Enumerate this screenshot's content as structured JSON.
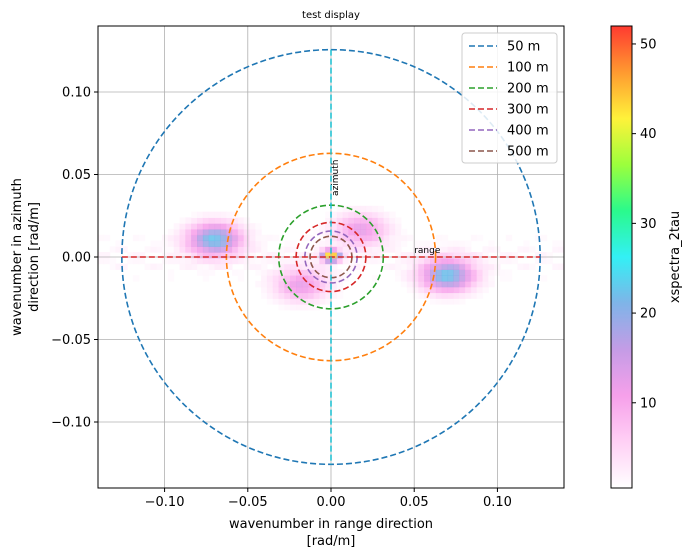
{
  "chart_data": {
    "type": "heatmap",
    "title": "test display",
    "xlabel": "wavenumber in range direction",
    "xlabel_unit": "[rad/m]",
    "ylabel": "wavenumber in azimuth",
    "ylabel_unit": "direction [rad/m]",
    "xlim": [
      -0.14,
      0.14
    ],
    "ylim": [
      -0.14,
      0.14
    ],
    "xticks": [
      -0.1,
      -0.05,
      0.0,
      0.05,
      0.1
    ],
    "xtick_labels": [
      "−0.10",
      "−0.05",
      "0.00",
      "0.05",
      "0.10"
    ],
    "yticks": [
      0.1,
      0.05,
      0.0,
      -0.05,
      -0.1
    ],
    "ytick_labels": [
      "0.10",
      "0.05",
      "0.00",
      "−0.05",
      "−0.10"
    ],
    "grid": true,
    "legend_position": "top-right",
    "wavelength_circles": [
      {
        "name": "50 m",
        "wavelength": 50,
        "color": "#1f77b4"
      },
      {
        "name": "100 m",
        "wavelength": 100,
        "color": "#ff7f0e"
      },
      {
        "name": "200 m",
        "wavelength": 200,
        "color": "#2ca02c"
      },
      {
        "name": "300 m",
        "wavelength": 300,
        "color": "#d62728"
      },
      {
        "name": "400 m",
        "wavelength": 400,
        "color": "#9467bd"
      },
      {
        "name": "500 m",
        "wavelength": 500,
        "color": "#8c564b"
      }
    ],
    "axis_lines": [
      {
        "label": "azimuth",
        "direction": "vertical",
        "color": "#17becf"
      },
      {
        "label": "range",
        "direction": "horizontal",
        "color": "#d62728"
      }
    ],
    "heatmap_blobs": [
      {
        "kx": -0.07,
        "ky": 0.011,
        "peak": 22
      },
      {
        "kx": 0.07,
        "ky": -0.011,
        "peak": 22
      },
      {
        "kx": 0.0,
        "ky": 0.001,
        "peak": 48
      },
      {
        "kx": -0.018,
        "ky": -0.017,
        "peak": 12
      },
      {
        "kx": 0.018,
        "ky": 0.017,
        "peak": 12
      }
    ],
    "colorbar": {
      "label": "xspectra_2tau",
      "range": [
        0.5,
        52
      ],
      "ticks": [
        10,
        20,
        30,
        40,
        50
      ],
      "tick_labels": [
        "10",
        "20",
        "30",
        "40",
        "50"
      ],
      "colors": [
        "#ffffff",
        "#ffd0f5",
        "#f6a0ea",
        "#c49ce6",
        "#7fb4e8",
        "#33f0f5",
        "#2afa8c",
        "#9cff3c",
        "#fff23a",
        "#ff9a30",
        "#ff3a30"
      ]
    }
  }
}
